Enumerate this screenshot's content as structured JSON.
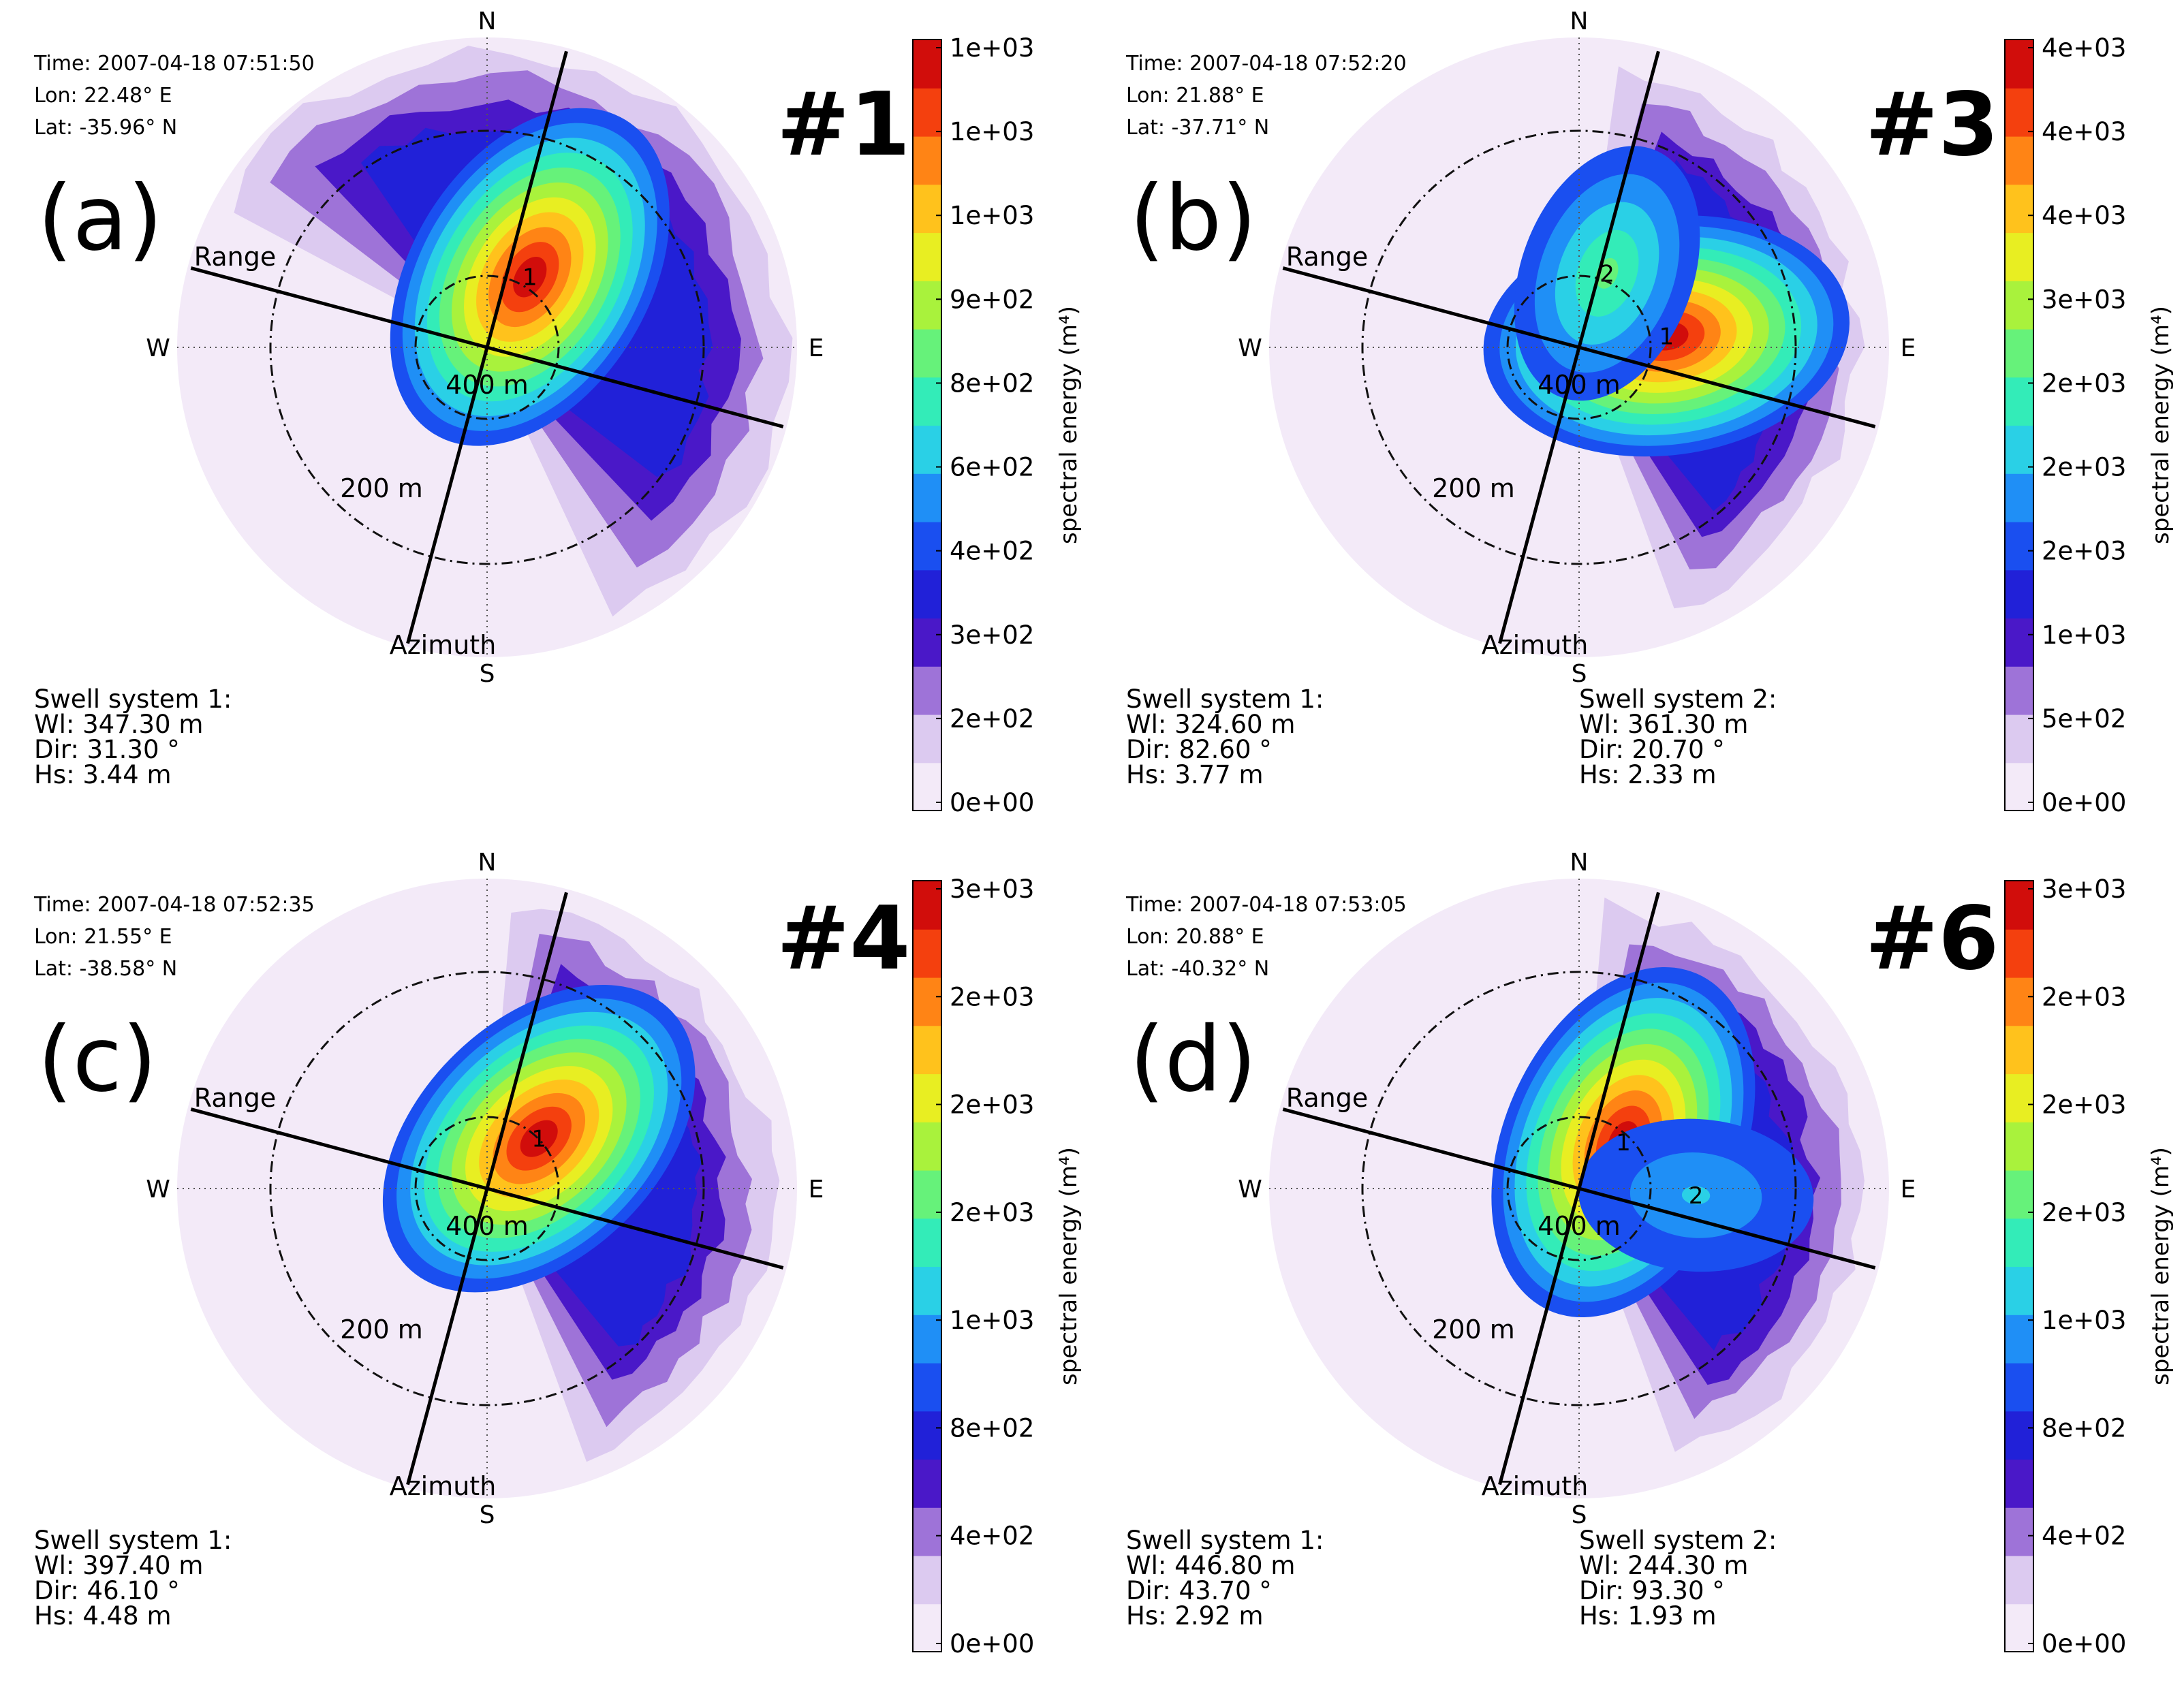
{
  "figure": {
    "colorbar_label": "spectral energy (m⁴)",
    "compass": {
      "north": "N",
      "south": "S",
      "east": "E",
      "west": "W"
    },
    "axis_labels": {
      "range": "Range",
      "azimuth": "Azimuth"
    },
    "ring_labels": {
      "inner": "400 m",
      "outer": "200 m"
    },
    "colormap": [
      "#f3eaf8",
      "#dccaf0",
      "#9e73d8",
      "#4a18c8",
      "#2121d8",
      "#1a4ff0",
      "#1f8ff6",
      "#2ad0e6",
      "#33ecb8",
      "#66f27a",
      "#a9f23c",
      "#e8ee22",
      "#ffc21c",
      "#ff8415",
      "#f4400e",
      "#d10d0b"
    ]
  },
  "chart_data": [
    {
      "type": "heatmap",
      "subtype": "polar wave spectrum",
      "panel_label": "(a)",
      "tag": "#1",
      "time": "Time: 2007-04-18 07:51:50",
      "lon": "Lon: 22.48° E",
      "lat": "Lat: -35.96° N",
      "range_axis_azimuth_deg": 105,
      "azimuth_axis_deg": 15,
      "colorbar_ticks": [
        "1e+03",
        "1e+03",
        "1e+03",
        "9e+02",
        "8e+02",
        "6e+02",
        "4e+02",
        "3e+02",
        "2e+02",
        "0e+00"
      ],
      "peaks": [
        {
          "label": "1",
          "bearing_deg": 31.3,
          "wavelength_m": 347.3,
          "value": 1100
        }
      ],
      "swell_systems": [
        {
          "title": "Swell system 1:",
          "wl": "Wl: 347.30 m",
          "dir": "Dir: 31.30 °",
          "hs": "Hs: 3.44 m"
        }
      ]
    },
    {
      "type": "heatmap",
      "subtype": "polar wave spectrum",
      "panel_label": "(b)",
      "tag": "#3",
      "time": "Time: 2007-04-18 07:52:20",
      "lon": "Lon: 21.88° E",
      "lat": "Lat: -37.71° N",
      "range_axis_azimuth_deg": 105,
      "azimuth_axis_deg": 15,
      "colorbar_ticks": [
        "4e+03",
        "4e+03",
        "4e+03",
        "3e+03",
        "2e+03",
        "2e+03",
        "2e+03",
        "1e+03",
        "5e+02",
        "0e+00"
      ],
      "peaks": [
        {
          "label": "1",
          "bearing_deg": 82.6,
          "wavelength_m": 324.6,
          "value": 4000
        },
        {
          "label": "2",
          "bearing_deg": 20.7,
          "wavelength_m": 361.3,
          "value": 1500
        }
      ],
      "swell_systems": [
        {
          "title": "Swell system 1:",
          "wl": "Wl: 324.60 m",
          "dir": "Dir: 82.60 °",
          "hs": "Hs: 3.77 m"
        },
        {
          "title": "Swell system 2:",
          "wl": "Wl: 361.30 m",
          "dir": "Dir: 20.70 °",
          "hs": "Hs: 2.33 m"
        }
      ]
    },
    {
      "type": "heatmap",
      "subtype": "polar wave spectrum",
      "panel_label": "(c)",
      "tag": "#4",
      "time": "Time: 2007-04-18 07:52:35",
      "lon": "Lon: 21.55° E",
      "lat": "Lat: -38.58° N",
      "range_axis_azimuth_deg": 105,
      "azimuth_axis_deg": 15,
      "colorbar_ticks": [
        "3e+03",
        "2e+03",
        "2e+03",
        "2e+03",
        "1e+03",
        "8e+02",
        "4e+02",
        "0e+00"
      ],
      "peaks": [
        {
          "label": "1",
          "bearing_deg": 46.1,
          "wavelength_m": 397.4,
          "value": 3500
        }
      ],
      "swell_systems": [
        {
          "title": "Swell system 1:",
          "wl": "Wl: 397.40 m",
          "dir": "Dir: 46.10 °",
          "hs": "Hs: 4.48 m"
        }
      ]
    },
    {
      "type": "heatmap",
      "subtype": "polar wave spectrum",
      "panel_label": "(d)",
      "tag": "#6",
      "time": "Time: 2007-04-18 07:53:05",
      "lon": "Lon: 20.88° E",
      "lat": "Lat: -40.32° N",
      "range_axis_azimuth_deg": 105,
      "azimuth_axis_deg": 15,
      "colorbar_ticks": [
        "3e+03",
        "2e+03",
        "2e+03",
        "2e+03",
        "1e+03",
        "8e+02",
        "4e+02",
        "0e+00"
      ],
      "peaks": [
        {
          "label": "1",
          "bearing_deg": 43.7,
          "wavelength_m": 446.8,
          "value": 3500
        },
        {
          "label": "2",
          "bearing_deg": 93.3,
          "wavelength_m": 244.3,
          "value": 700
        }
      ],
      "swell_systems": [
        {
          "title": "Swell system 1:",
          "wl": "Wl: 446.80 m",
          "dir": "Dir: 43.70 °",
          "hs": "Hs: 2.92 m"
        },
        {
          "title": "Swell system 2:",
          "wl": "Wl: 244.30 m",
          "dir": "Dir: 93.30 °",
          "hs": "Hs: 1.93 m"
        }
      ]
    }
  ]
}
